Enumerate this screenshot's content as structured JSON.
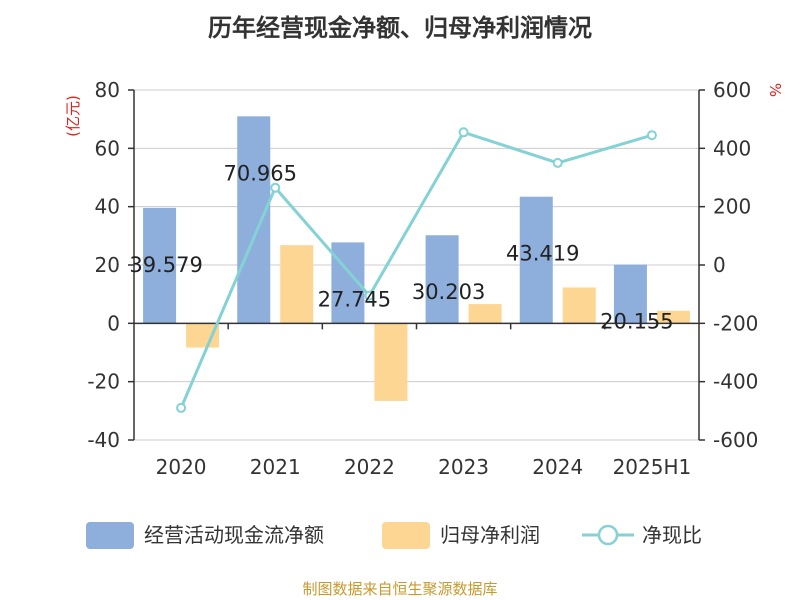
{
  "title": "历年经营现金净额、归母净利润情况",
  "source": "制图数据来自恒生聚源数据库",
  "colors": {
    "series1": "#8eaedc",
    "series2": "#fdd694",
    "series3": "#84d2d4"
  },
  "chart_data": {
    "type": "bar",
    "title": "历年经营现金净额、归母净利润情况",
    "categories": [
      "2020",
      "2021",
      "2022",
      "2023",
      "2024",
      "2025H1"
    ],
    "y_left": {
      "unit_label": "(亿元)",
      "range": [
        -40,
        80
      ],
      "ticks": [
        80,
        60,
        40,
        20,
        0,
        -20,
        -40
      ]
    },
    "y_right": {
      "unit_label": "%",
      "range": [
        -600,
        600
      ],
      "ticks": [
        600,
        400,
        200,
        0,
        -200,
        -400,
        -600
      ]
    },
    "grid": true,
    "legend_position": "bottom",
    "series": [
      {
        "name": "经营活动现金流净额",
        "kind": "bar",
        "axis": "left",
        "values": [
          39.579,
          70.965,
          27.745,
          30.203,
          43.419,
          20.155
        ],
        "labels": [
          "39.579",
          "70.965",
          "27.745",
          "30.203",
          "43.419",
          "20.155"
        ]
      },
      {
        "name": "归母净利润",
        "kind": "bar",
        "axis": "left",
        "values": [
          -8.3,
          26.8,
          -26.6,
          6.6,
          12.3,
          4.3
        ]
      },
      {
        "name": "净现比",
        "kind": "line",
        "axis": "right",
        "values": [
          -490,
          265,
          -105,
          455,
          350,
          445
        ]
      }
    ]
  }
}
